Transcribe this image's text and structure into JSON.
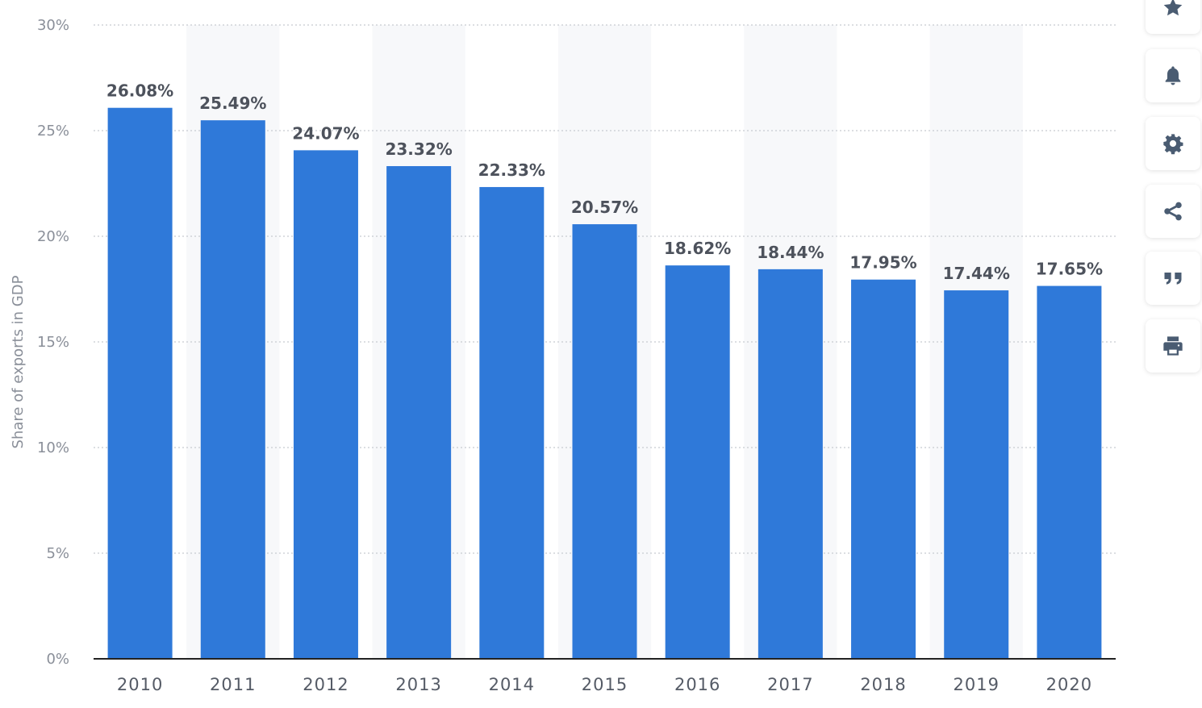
{
  "chart_data": {
    "type": "bar",
    "categories": [
      "2010",
      "2011",
      "2012",
      "2013",
      "2014",
      "2015",
      "2016",
      "2017",
      "2018",
      "2019",
      "2020"
    ],
    "values": [
      26.08,
      25.49,
      24.07,
      23.32,
      22.33,
      20.57,
      18.62,
      18.44,
      17.95,
      17.44,
      17.65
    ],
    "data_labels": [
      "26.08%",
      "25.49%",
      "24.07%",
      "23.32%",
      "22.33%",
      "20.57%",
      "18.62%",
      "18.44%",
      "17.95%",
      "17.44%",
      "17.65%"
    ],
    "ylabel": "Share of exports in GDP",
    "xlabel": "",
    "ylim": [
      0,
      30
    ],
    "yticks": [
      0,
      5,
      10,
      15,
      20,
      25,
      30
    ],
    "ytick_labels": [
      "0%",
      "5%",
      "10%",
      "15%",
      "20%",
      "25%",
      "30%"
    ],
    "grid": true,
    "bar_color": "#2f79d9",
    "band_color": "#f7f8fa"
  },
  "toolbar": {
    "buttons": [
      {
        "icon": "star-icon",
        "name": "favorite-button"
      },
      {
        "icon": "bell-icon",
        "name": "notification-button"
      },
      {
        "icon": "gear-icon",
        "name": "settings-button"
      },
      {
        "icon": "share-icon",
        "name": "share-button"
      },
      {
        "icon": "quote-icon",
        "name": "cite-button"
      },
      {
        "icon": "print-icon",
        "name": "print-button"
      }
    ],
    "icon_color": "#4a5c72"
  }
}
